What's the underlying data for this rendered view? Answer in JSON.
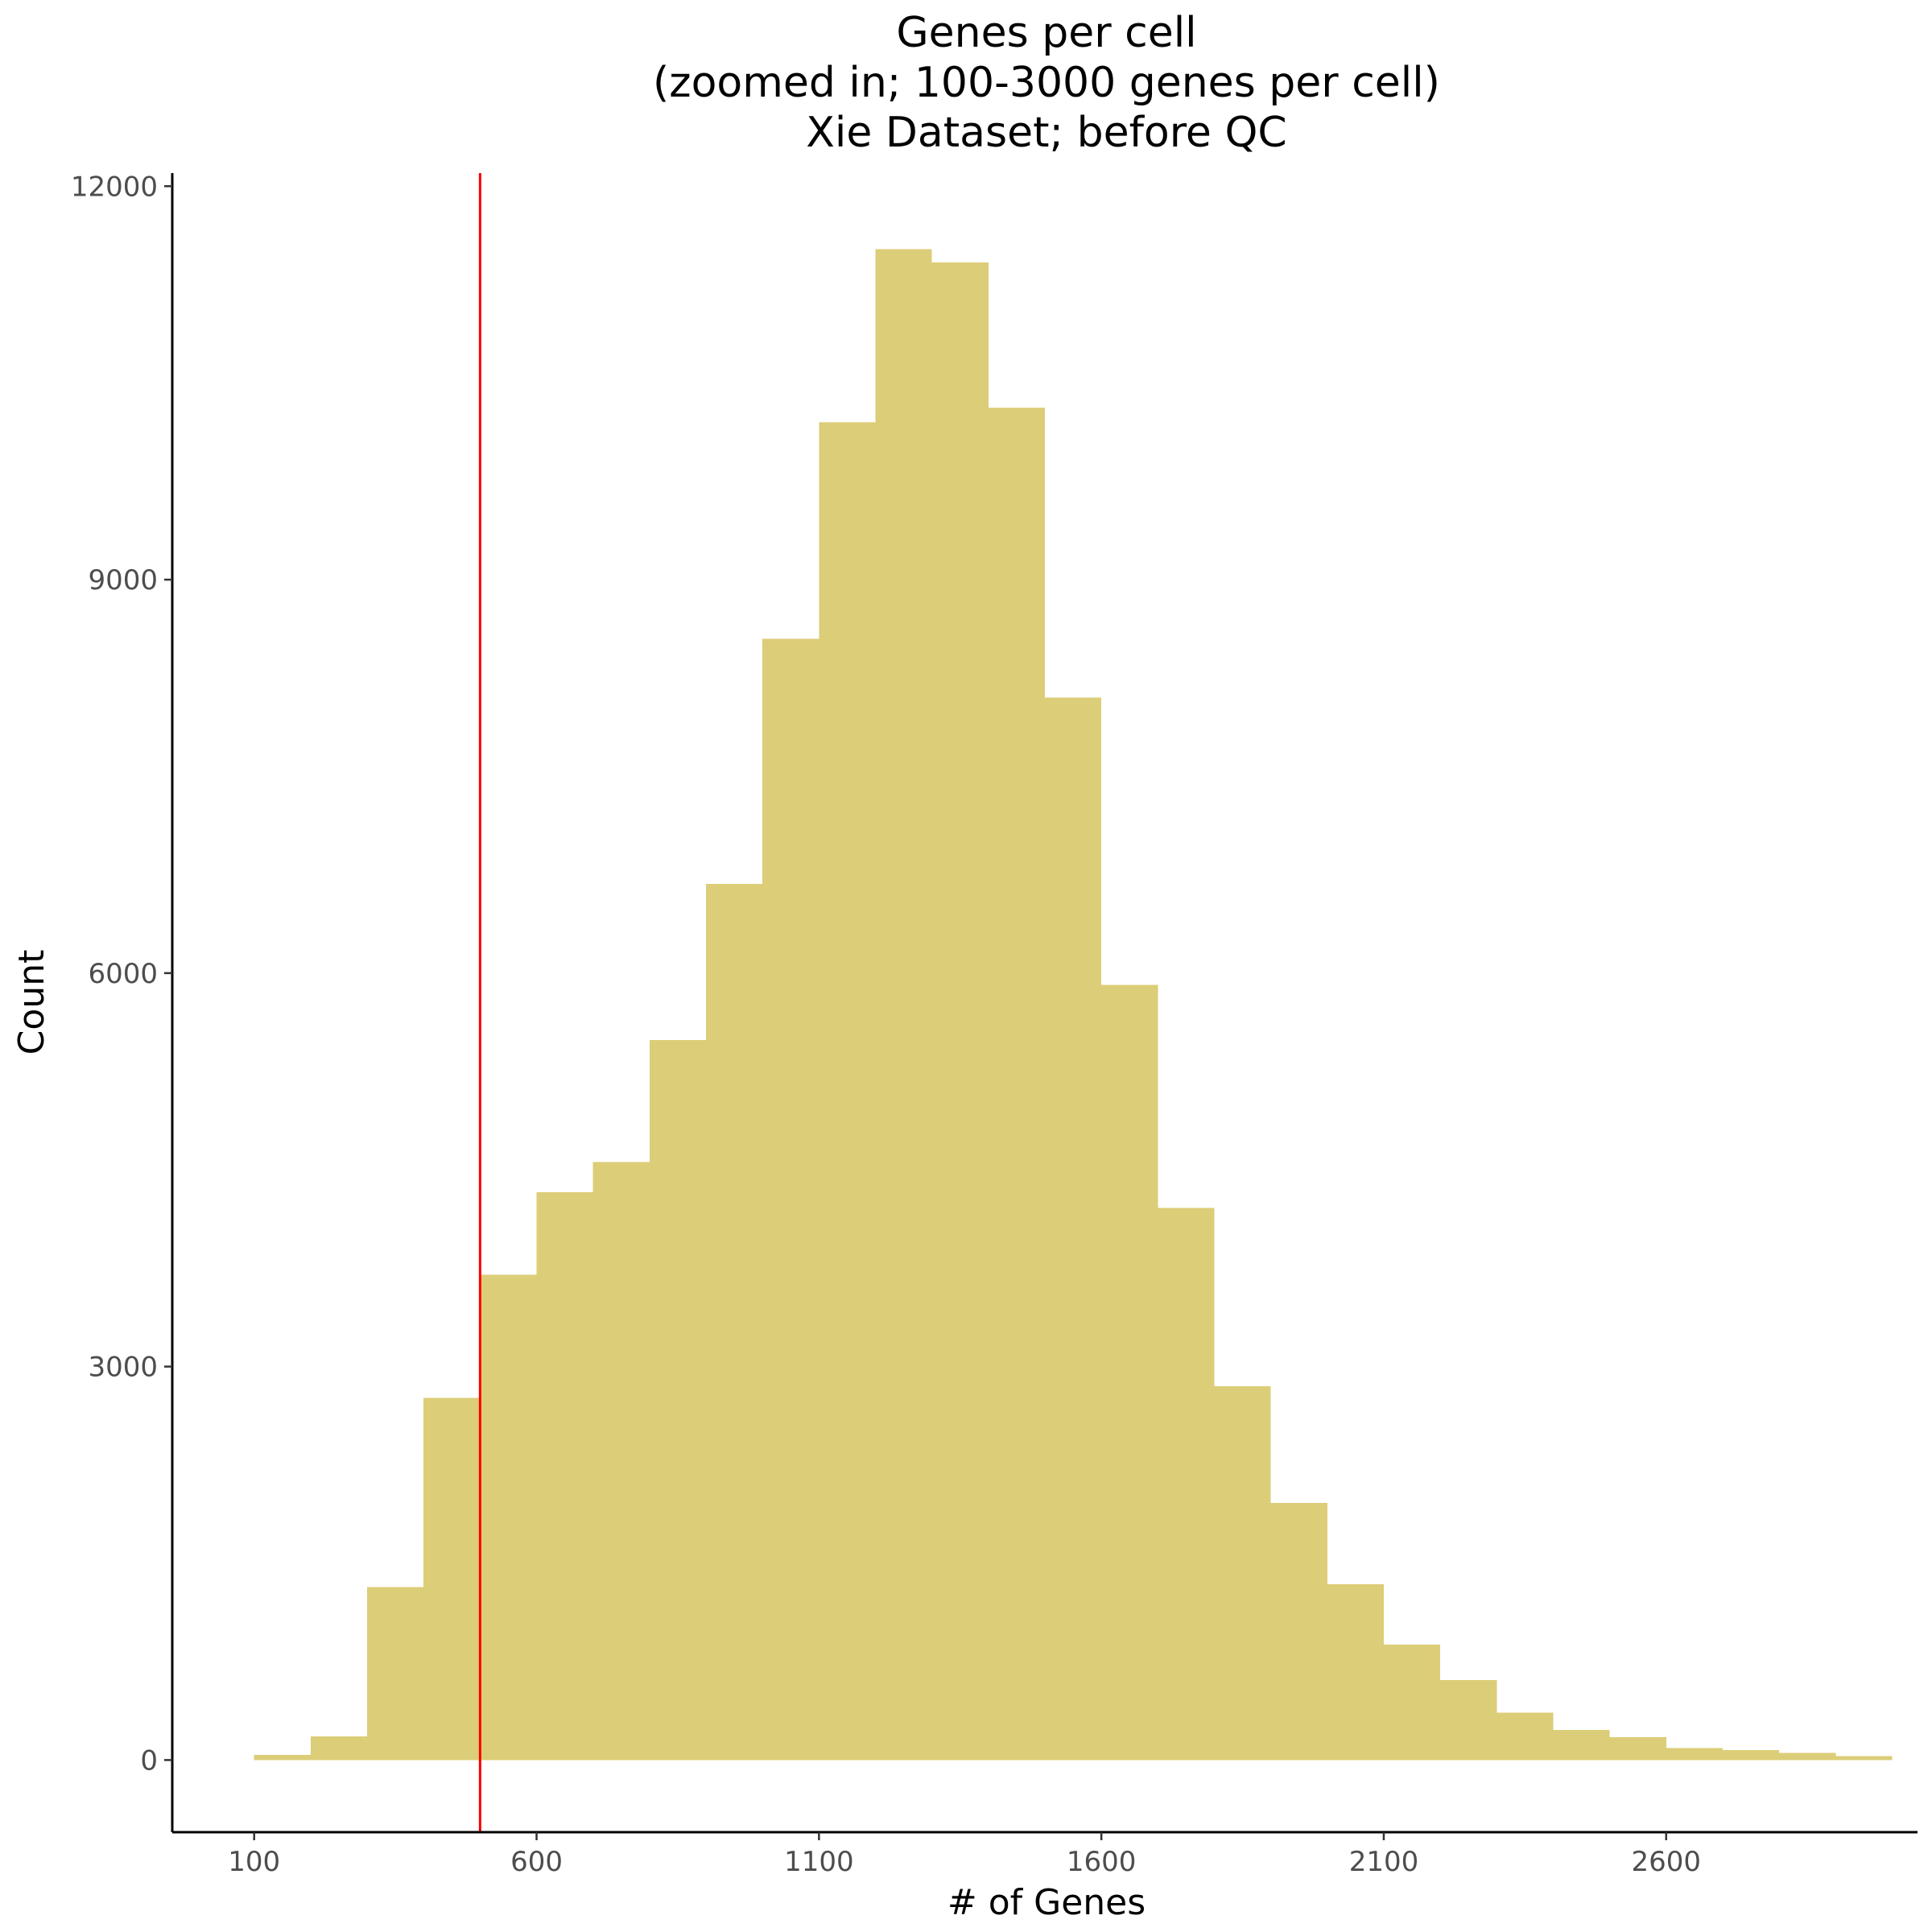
{
  "chart_data": {
    "type": "bar",
    "title_lines": [
      "Genes per cell",
      "(zoomed in; 100-3000 genes per cell)",
      "Xie Dataset; before QC"
    ],
    "xlabel": "# of Genes",
    "ylabel": "Count",
    "x_ticks": [
      "100",
      "600",
      "1100",
      "1600",
      "2100",
      "2600"
    ],
    "y_ticks": [
      "0",
      "3000",
      "6000",
      "9000",
      "12000"
    ],
    "xlim": [
      -45,
      3045
    ],
    "ylim": [
      -550,
      12100
    ],
    "bin_width": 100,
    "bins": [
      {
        "start": 100,
        "count": 40
      },
      {
        "start": 200,
        "count": 180
      },
      {
        "start": 300,
        "count": 1320
      },
      {
        "start": 400,
        "count": 2760
      },
      {
        "start": 500,
        "count": 3700
      },
      {
        "start": 600,
        "count": 4330
      },
      {
        "start": 700,
        "count": 4560
      },
      {
        "start": 800,
        "count": 5490
      },
      {
        "start": 900,
        "count": 6680
      },
      {
        "start": 1000,
        "count": 8550
      },
      {
        "start": 1100,
        "count": 10200
      },
      {
        "start": 1200,
        "count": 11520
      },
      {
        "start": 1300,
        "count": 11420
      },
      {
        "start": 1400,
        "count": 10310
      },
      {
        "start": 1500,
        "count": 8100
      },
      {
        "start": 1600,
        "count": 5910
      },
      {
        "start": 1700,
        "count": 4210
      },
      {
        "start": 1800,
        "count": 2850
      },
      {
        "start": 1900,
        "count": 1960
      },
      {
        "start": 2000,
        "count": 1340
      },
      {
        "start": 2100,
        "count": 880
      },
      {
        "start": 2200,
        "count": 610
      },
      {
        "start": 2300,
        "count": 360
      },
      {
        "start": 2400,
        "count": 230
      },
      {
        "start": 2500,
        "count": 175
      },
      {
        "start": 2600,
        "count": 90
      },
      {
        "start": 2700,
        "count": 75
      },
      {
        "start": 2800,
        "count": 55
      },
      {
        "start": 2900,
        "count": 30
      }
    ],
    "vline": {
      "x": 500
    },
    "bar_color": "#dccd78",
    "vline_color": "#ff0000",
    "grid": false
  }
}
